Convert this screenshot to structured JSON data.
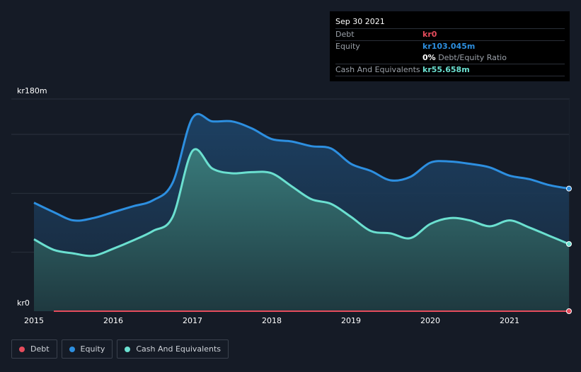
{
  "tooltip": {
    "date": "Sep 30 2021",
    "debt_label": "Debt",
    "debt_value": "kr0",
    "equity_label": "Equity",
    "equity_value": "kr103.045m",
    "ratio_value": "0%",
    "ratio_label": "Debt/Equity Ratio",
    "cash_label": "Cash And Equivalents",
    "cash_value": "kr55.658m"
  },
  "colors": {
    "debt": "#e64c5c",
    "equity": "#2d8fe0",
    "cash": "#6be0d0",
    "background": "#151b26"
  },
  "legend": [
    {
      "label": "Debt",
      "color": "#e64c5c"
    },
    {
      "label": "Equity",
      "color": "#2d8fe0"
    },
    {
      "label": "Cash And Equivalents",
      "color": "#6be0d0"
    }
  ],
  "chart_data": {
    "type": "area",
    "y_top_label": "kr180m",
    "y_bottom_label": "kr0",
    "ylim": [
      0,
      180
    ],
    "xlim": [
      2015,
      2021.75
    ],
    "xticks": [
      "2015",
      "2016",
      "2017",
      "2018",
      "2019",
      "2020",
      "2021"
    ],
    "grid": true,
    "legend_position": "bottom-left",
    "series": [
      {
        "name": "Equity",
        "x": [
          2015.0,
          2015.25,
          2015.5,
          2015.75,
          2016.0,
          2016.25,
          2016.5,
          2016.75,
          2017.0,
          2017.25,
          2017.5,
          2017.75,
          2018.0,
          2018.25,
          2018.5,
          2018.75,
          2019.0,
          2019.25,
          2019.5,
          2019.75,
          2020.0,
          2020.25,
          2020.5,
          2020.75,
          2021.0,
          2021.25,
          2021.5,
          2021.75
        ],
        "values": [
          92,
          84,
          77,
          79,
          84,
          89,
          94,
          109,
          164,
          161,
          161,
          155,
          146,
          144,
          140,
          138,
          125,
          119,
          111,
          114,
          126,
          127,
          125,
          122,
          115,
          112,
          107,
          104
        ]
      },
      {
        "name": "Cash And Equivalents",
        "x": [
          2015.0,
          2015.25,
          2015.5,
          2015.75,
          2016.0,
          2016.25,
          2016.5,
          2016.75,
          2017.0,
          2017.25,
          2017.5,
          2017.75,
          2018.0,
          2018.25,
          2018.5,
          2018.75,
          2019.0,
          2019.25,
          2019.5,
          2019.75,
          2020.0,
          2020.25,
          2020.5,
          2020.75,
          2021.0,
          2021.25,
          2021.5,
          2021.75
        ],
        "values": [
          61,
          52,
          49,
          47,
          53,
          60,
          68,
          80,
          136,
          121,
          117,
          118,
          117,
          106,
          95,
          91,
          80,
          68,
          66,
          62,
          74,
          79,
          77,
          72,
          77,
          71,
          64,
          57
        ]
      },
      {
        "name": "Debt",
        "x": [
          2015.25,
          2021.75
        ],
        "values": [
          0,
          0
        ]
      }
    ]
  }
}
